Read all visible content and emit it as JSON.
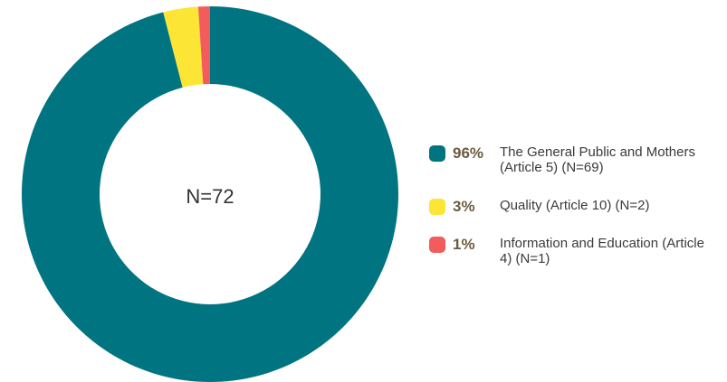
{
  "chart_data": {
    "type": "donut",
    "center_label": "N=72",
    "categories": [
      "The General Public and Mothers (Article 5) (N=69)",
      "Quality (Article 10) (N=2)",
      "Information and Education (Article 4) (N=1)"
    ],
    "values": [
      96,
      3,
      1
    ],
    "value_labels": [
      "96%",
      "3%",
      "1%"
    ],
    "colors": [
      "#007480",
      "#fde535",
      "#f25c5c"
    ]
  }
}
